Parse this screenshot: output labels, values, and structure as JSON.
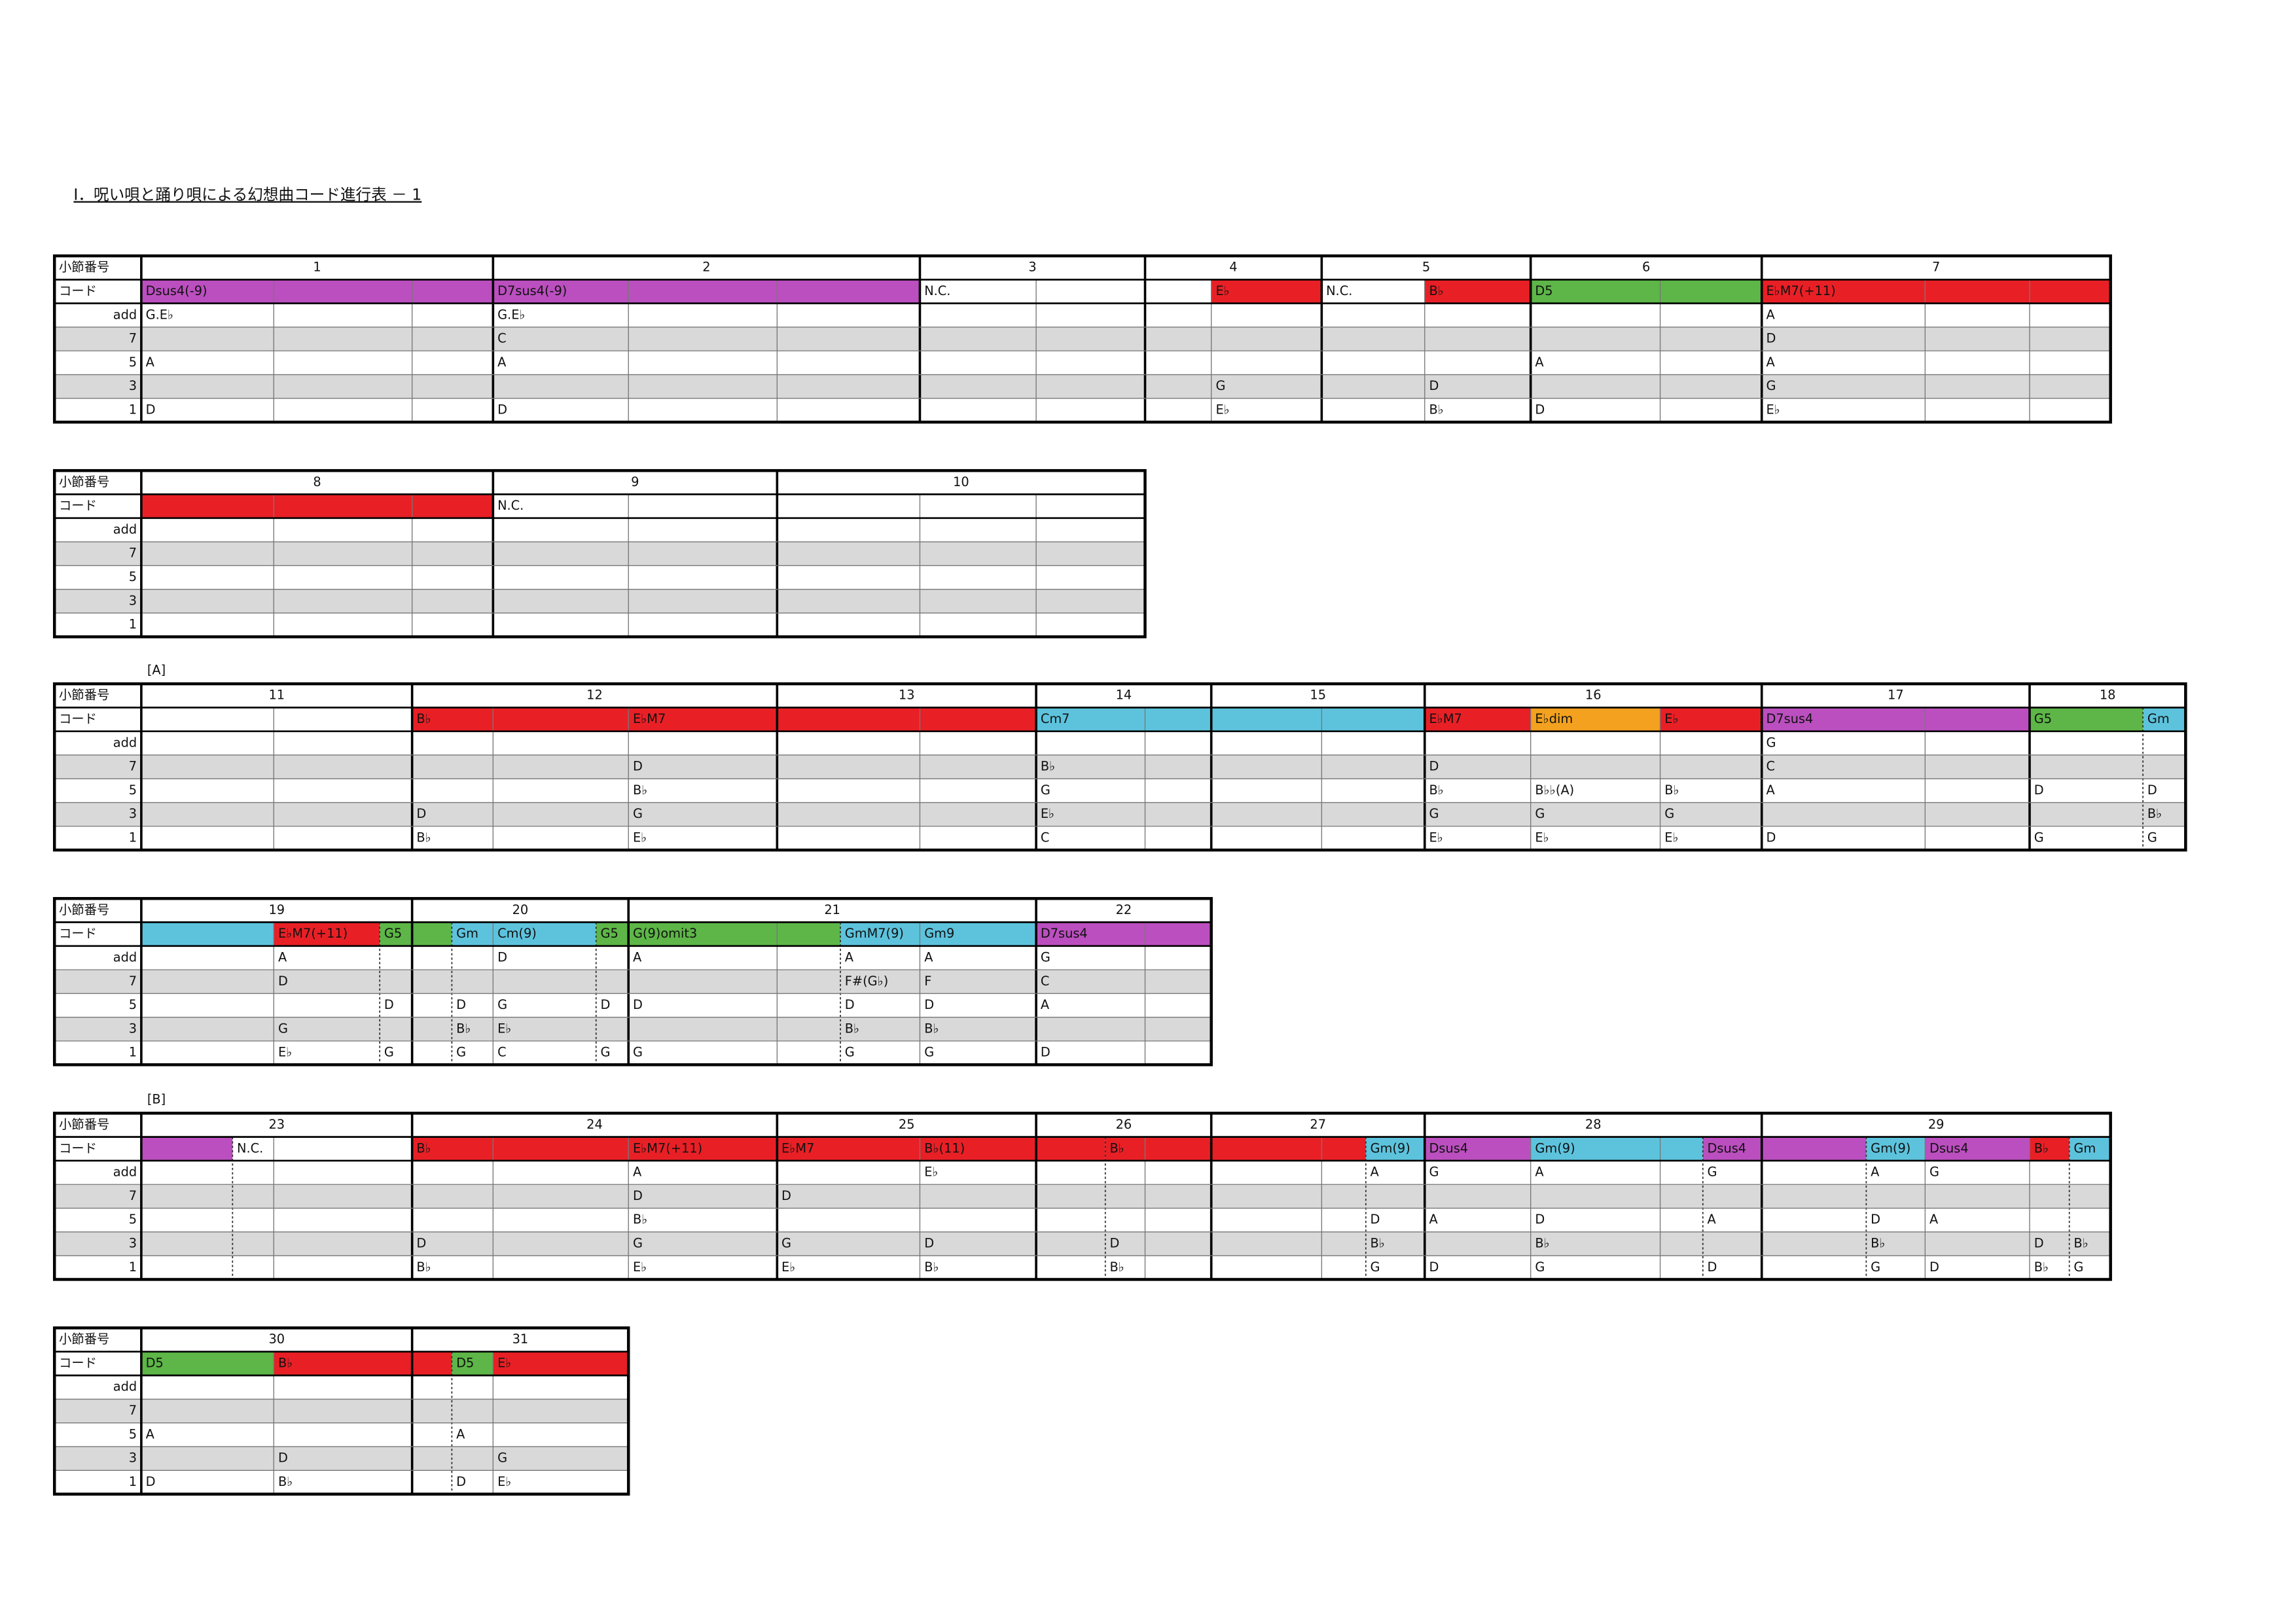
{
  "header": {
    "title": "Ⅰ．呪い唄と踊り唄による幻想曲コード進行表 － 1"
  },
  "row_labels": [
    "小節番号",
    "コード",
    "add",
    "7",
    "5",
    "3",
    "1"
  ],
  "tables": [
    {
      "measures": [
        {
          "number": "1",
          "cells": [
            {
              "chord": "Dsus4(-9)",
              "color": "#bb4fbf",
              "add": "G.E♭",
              "5": "A",
              "1": "D"
            },
            {
              "color": "#bb4fbf"
            },
            {
              "color": "#bb4fbf"
            }
          ]
        },
        {
          "number": "2",
          "cells": [
            {
              "chord": "D7sus4(-9)",
              "color": "#bb4fbf",
              "add": "G.E♭",
              "7": "C",
              "5": "A",
              "1": "D"
            },
            {
              "color": "#bb4fbf"
            },
            {
              "color": "#bb4fbf"
            }
          ]
        },
        {
          "number": "3",
          "cells": [
            {
              "chord": "N.C."
            },
            {}
          ]
        },
        {
          "number": "4",
          "cells": [
            {},
            {
              "chord": "E♭",
              "color": "#e82026",
              "3": "G",
              "1": "E♭"
            }
          ]
        },
        {
          "number": "5",
          "cells": [
            {
              "chord": "N.C."
            },
            {
              "chord": "B♭",
              "color": "#e82026",
              "3": "D",
              "1": "B♭"
            }
          ]
        },
        {
          "number": "6",
          "cells": [
            {
              "chord": "D5",
              "color": "#5db647",
              "5": "A",
              "1": "D"
            },
            {
              "color": "#5db647"
            }
          ]
        },
        {
          "number": "7",
          "cells": [
            {
              "chord": "E♭M7(+11)",
              "color": "#e82026",
              "add": "A",
              "7": "D",
              "5": "A",
              "3": "G",
              "1": "E♭"
            },
            {
              "color": "#e82026"
            },
            {
              "color": "#e82026"
            }
          ]
        }
      ]
    },
    {
      "measures": [
        {
          "number": "8",
          "cells": [
            {
              "color": "#e82026"
            },
            {
              "color": "#e82026"
            },
            {
              "color": "#e82026"
            }
          ]
        },
        {
          "number": "9",
          "cells": [
            {
              "chord": "N.C."
            },
            {}
          ]
        },
        {
          "number": "10",
          "cells": [
            {},
            {},
            {}
          ]
        }
      ]
    },
    {
      "section": "[A]",
      "measures": [
        {
          "number": "11",
          "cells": [
            {},
            {}
          ]
        },
        {
          "number": "12",
          "cells": [
            {
              "chord": "B♭",
              "color": "#e82026",
              "3": "D",
              "1": "B♭"
            },
            {
              "color": "#e82026"
            },
            {
              "chord": "E♭M7",
              "color": "#e82026",
              "7": "D",
              "5": "B♭",
              "3": "G",
              "1": "E♭"
            }
          ]
        },
        {
          "number": "13",
          "cells": [
            {
              "color": "#e82026"
            },
            {
              "color": "#e82026"
            }
          ]
        },
        {
          "number": "14",
          "cells": [
            {
              "chord": "Cm7",
              "color": "#5dc3dd",
              "7": "B♭",
              "5": "G",
              "3": "E♭",
              "1": "C"
            },
            {
              "color": "#5dc3dd"
            }
          ]
        },
        {
          "number": "15",
          "cells": [
            {
              "color": "#5dc3dd"
            },
            {
              "color": "#5dc3dd"
            }
          ]
        },
        {
          "number": "16",
          "cells": [
            {
              "chord": "E♭M7",
              "color": "#e82026",
              "7": "D",
              "5": "B♭",
              "3": "G",
              "1": "E♭"
            },
            {
              "chord": "E♭dim",
              "color": "#f4a11f",
              "5": "B♭♭(A)",
              "3": "G",
              "1": "E♭"
            },
            {
              "chord": "E♭",
              "color": "#e82026",
              "5": "B♭",
              "3": "G",
              "1": "E♭"
            }
          ]
        },
        {
          "number": "17",
          "cells": [
            {
              "chord": "D7sus4",
              "color": "#bb4fbf",
              "add": "G",
              "7": "C",
              "5": "A",
              "1": "D"
            },
            {
              "color": "#bb4fbf"
            }
          ]
        },
        {
          "number": "18",
          "cells": [
            {
              "chord": "G5",
              "color": "#5db647",
              "5": "D",
              "1": "G"
            },
            {
              "chord": "Gm",
              "color": "#5dc3dd",
              "5": "D",
              "3": "B♭",
              "1": "G"
            }
          ]
        }
      ]
    },
    {
      "measures": [
        {
          "number": "19",
          "cells": [
            {
              "color": "#5dc3dd"
            },
            {
              "chord": "E♭M7(+11)",
              "color": "#e82026",
              "add": "A",
              "7": "D",
              "3": "G",
              "1": "E♭"
            },
            {
              "chord": "G5",
              "color": "#5db647",
              "5": "D",
              "1": "G"
            }
          ]
        },
        {
          "number": "20",
          "cells": [
            {
              "color": "#5db647"
            },
            {
              "chord": "Gm",
              "color": "#5dc3dd",
              "5": "D",
              "3": "B♭",
              "1": "G"
            },
            {
              "chord": "Cm(9)",
              "color": "#5dc3dd",
              "add": "D",
              "5": "G",
              "3": "E♭",
              "1": "C"
            },
            {
              "chord": "G5",
              "color": "#5db647",
              "5": "D",
              "1": "G"
            }
          ]
        },
        {
          "number": "21",
          "cells": [
            {
              "chord": "G(9)omit3",
              "color": "#5db647",
              "add": "A",
              "5": "D",
              "1": "G"
            },
            {
              "color": "#5db647"
            },
            {
              "chord": "GmM7(9)",
              "color": "#5dc3dd",
              "add": "A",
              "7": "F#(G♭)",
              "5": "D",
              "3": "B♭",
              "1": "G"
            },
            {
              "chord": "Gm9",
              "color": "#5dc3dd",
              "add": "A",
              "7": "F",
              "5": "D",
              "3": "B♭",
              "1": "G"
            }
          ]
        },
        {
          "number": "22",
          "cells": [
            {
              "chord": "D7sus4",
              "color": "#bb4fbf",
              "add": "G",
              "7": "C",
              "5": "A",
              "1": "D"
            },
            {
              "color": "#bb4fbf"
            }
          ]
        }
      ]
    },
    {
      "section": "[B]",
      "measures": [
        {
          "number": "23",
          "cells": [
            {
              "color": "#bb4fbf"
            },
            {
              "chord": "N.C."
            },
            {}
          ]
        },
        {
          "number": "24",
          "cells": [
            {
              "chord": "B♭",
              "color": "#e82026",
              "3": "D",
              "1": "B♭"
            },
            {
              "color": "#e82026"
            },
            {
              "chord": "E♭M7(+11)",
              "color": "#e82026",
              "add": "A",
              "7": "D",
              "5": "B♭",
              "3": "G",
              "1": "E♭"
            }
          ]
        },
        {
          "number": "25",
          "cells": [
            {
              "chord": "E♭M7",
              "color": "#e82026",
              "7": "D",
              "3": "G",
              "1": "E♭"
            },
            {
              "chord": "B♭(11)",
              "color": "#e82026",
              "add": "E♭",
              "3": "D",
              "1": "B♭"
            }
          ]
        },
        {
          "number": "26",
          "cells": [
            {
              "color": "#e82026"
            },
            {
              "chord": "B♭",
              "color": "#e82026",
              "3": "D",
              "1": "B♭"
            },
            {
              "color": "#e82026"
            }
          ]
        },
        {
          "number": "27",
          "cells": [
            {
              "color": "#e82026"
            },
            {
              "color": "#e82026"
            },
            {
              "chord": "Gm(9)",
              "color": "#5dc3dd",
              "add": "A",
              "5": "D",
              "3": "B♭",
              "1": "G"
            }
          ]
        },
        {
          "number": "28",
          "cells": [
            {
              "chord": "Dsus4",
              "color": "#bb4fbf",
              "add": "G",
              "5": "A",
              "1": "D"
            },
            {
              "chord": "Gm(9)",
              "color": "#5dc3dd",
              "add": "A",
              "5": "D",
              "3": "B♭",
              "1": "G"
            },
            {
              "color": "#5dc3dd"
            },
            {
              "chord": "Dsus4",
              "color": "#bb4fbf",
              "add": "G",
              "5": "A",
              "1": "D"
            }
          ]
        },
        {
          "number": "29",
          "cells": [
            {
              "color": "#bb4fbf"
            },
            {
              "chord": "Gm(9)",
              "color": "#5dc3dd",
              "add": "A",
              "5": "D",
              "3": "B♭",
              "1": "G"
            },
            {
              "chord": "Dsus4",
              "color": "#bb4fbf",
              "add": "G",
              "5": "A",
              "1": "D"
            },
            {
              "chord": "B♭",
              "color": "#e82026",
              "3": "D",
              "1": "B♭"
            },
            {
              "chord": "Gm",
              "color": "#5dc3dd",
              "3": "B♭",
              "1": "G"
            }
          ]
        }
      ]
    },
    {
      "measures": [
        {
          "number": "30",
          "cells": [
            {
              "chord": "D5",
              "color": "#5db647",
              "5": "A",
              "1": "D"
            },
            {
              "chord": "B♭",
              "color": "#e82026",
              "3": "D",
              "1": "B♭"
            }
          ]
        },
        {
          "number": "31",
          "cells": [
            {
              "color": "#e82026"
            },
            {
              "chord": "D5",
              "color": "#5db647",
              "5": "A",
              "1": "D"
            },
            {
              "chord": "E♭",
              "color": "#e82026",
              "3": "G",
              "1": "E♭"
            }
          ]
        }
      ]
    }
  ]
}
